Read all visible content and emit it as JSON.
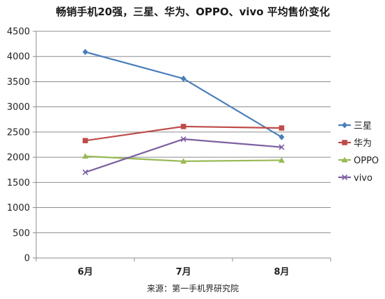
{
  "chart_data": {
    "type": "line",
    "title": "畅销手机20强，三星、华为、OPPO、vivo 平均售价变化",
    "categories": [
      "6月",
      "7月",
      "8月"
    ],
    "xlabel": "",
    "ylabel": "",
    "ylim": [
      0,
      4500
    ],
    "yticks": [
      0,
      500,
      1000,
      1500,
      2000,
      2500,
      3000,
      3500,
      4000,
      4500
    ],
    "grid": true,
    "legend": "right",
    "series": [
      {
        "name": "三星",
        "values": [
          4090,
          3560,
          2400
        ],
        "color": "#4a7ebb",
        "marker": "diamond"
      },
      {
        "name": "华为",
        "values": [
          2330,
          2610,
          2580
        ],
        "color": "#be4b48",
        "marker": "square"
      },
      {
        "name": "OPPO",
        "values": [
          2020,
          1920,
          1940
        ],
        "color": "#98b954",
        "marker": "triangle"
      },
      {
        "name": "vivo",
        "values": [
          1700,
          2360,
          2200
        ],
        "color": "#7d60a0",
        "marker": "x"
      }
    ],
    "source": "来源：第一手机界研究院"
  }
}
